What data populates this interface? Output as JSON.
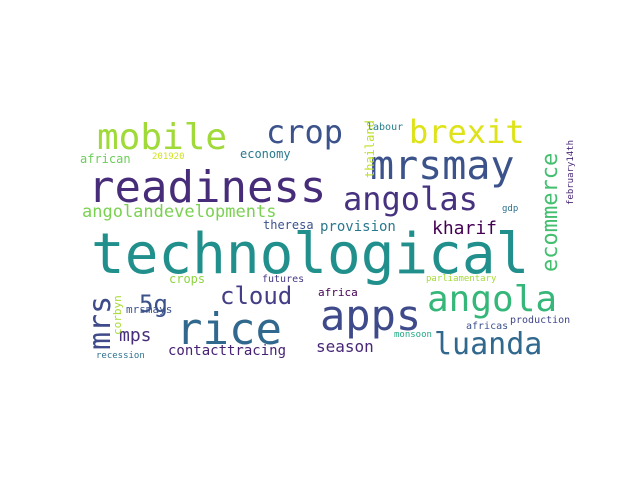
{
  "words": [
    {
      "text": "technological",
      "color": "#21908d",
      "rotated": false
    },
    {
      "text": "readiness",
      "color": "#472c7a",
      "rotated": false
    },
    {
      "text": "mrsmay",
      "color": "#3b528b",
      "rotated": false
    },
    {
      "text": "rice",
      "color": "#31688e",
      "rotated": false
    },
    {
      "text": "apps",
      "color": "#3e4a89",
      "rotated": false
    },
    {
      "text": "angola",
      "color": "#35b779",
      "rotated": false
    },
    {
      "text": "mobile",
      "color": "#a0da39",
      "rotated": false
    },
    {
      "text": "crop",
      "color": "#3b528b",
      "rotated": false
    },
    {
      "text": "brexit",
      "color": "#dde318",
      "rotated": false
    },
    {
      "text": "angolas",
      "color": "#46327e",
      "rotated": false
    },
    {
      "text": "luanda",
      "color": "#31688e",
      "rotated": false
    },
    {
      "text": "cloud",
      "color": "#433e85",
      "rotated": false
    },
    {
      "text": "mrs",
      "color": "#3e4a89",
      "rotated": true
    },
    {
      "text": "ecommerce",
      "color": "#44bf70",
      "rotated": true
    },
    {
      "text": "angolandevelopments",
      "color": "#7ad151",
      "rotated": false
    },
    {
      "text": "5g",
      "color": "#3b528b",
      "rotated": false
    },
    {
      "text": "kharif",
      "color": "#440154",
      "rotated": false
    },
    {
      "text": "season",
      "color": "#482878",
      "rotated": false
    },
    {
      "text": "mps",
      "color": "#472d7b",
      "rotated": false
    },
    {
      "text": "provision",
      "color": "#2a788e",
      "rotated": false
    },
    {
      "text": "contacttracing",
      "color": "#482173",
      "rotated": false
    },
    {
      "text": "economy",
      "color": "#2a788e",
      "rotated": false
    },
    {
      "text": "theresa",
      "color": "#3b528b",
      "rotated": false
    },
    {
      "text": "african",
      "color": "#6ccd5a",
      "rotated": false
    },
    {
      "text": "thailand",
      "color": "#bddf26",
      "rotated": true
    },
    {
      "text": "crops",
      "color": "#8ed542",
      "rotated": false
    },
    {
      "text": "mrsmays",
      "color": "#3b528b",
      "rotated": false
    },
    {
      "text": "corbyn",
      "color": "#a8db34",
      "rotated": true
    },
    {
      "text": "africa",
      "color": "#440154",
      "rotated": false
    },
    {
      "text": "labour",
      "color": "#277f8e",
      "rotated": false
    },
    {
      "text": "201920",
      "color": "#d2e21b",
      "rotated": false
    },
    {
      "text": "futures",
      "color": "#443983",
      "rotated": false
    },
    {
      "text": "gdp",
      "color": "#2c728e",
      "rotated": false
    },
    {
      "text": "february14th",
      "color": "#482878",
      "rotated": true
    },
    {
      "text": "parliamentary",
      "color": "#a5db36",
      "rotated": false
    },
    {
      "text": "production",
      "color": "#404688",
      "rotated": false
    },
    {
      "text": "africas",
      "color": "#3b528b",
      "rotated": false
    },
    {
      "text": "monsoon",
      "color": "#22a884",
      "rotated": false
    },
    {
      "text": "recession",
      "color": "#2c728e",
      "rotated": false
    }
  ]
}
